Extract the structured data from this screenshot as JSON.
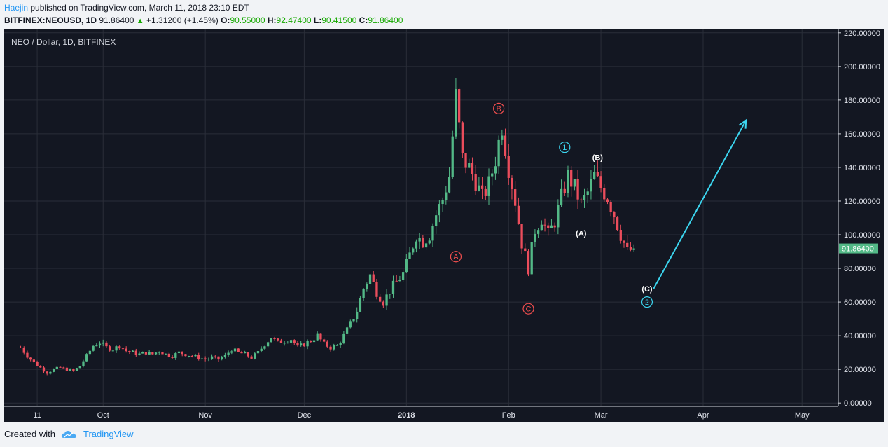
{
  "header": {
    "author": "Haejin",
    "published_text": "published on TradingView.com, March 11, 2018 23:10 EDT",
    "symbol": "BITFINEX:NEOUSD, 1D",
    "last_price": "91.86400",
    "change_arrow": "▲",
    "change": "+1.31200 (+1.45%)",
    "o_label": "O:",
    "o_value": "90.55000",
    "h_label": "H:",
    "h_value": "92.47400",
    "l_label": "L:",
    "l_value": "90.41500",
    "c_label": "C:",
    "c_value": "91.86400"
  },
  "footer": {
    "created_with": "Created with",
    "brand": "TradingView"
  },
  "colors": {
    "background": "#131722",
    "grid": "#2a2e39",
    "up": "#53b987",
    "down": "#eb4d5c",
    "arrow": "#3cd6f0",
    "label_red": "#f04e4e",
    "label_cyan": "#3cd6f0",
    "label_white": "#ffffff",
    "price_tag": "#53b987"
  },
  "chart_data": {
    "type": "candlestick",
    "title": "NEO / Dollar, 1D, BITFINEX",
    "x_tick_labels": [
      "11",
      "Oct",
      "Nov",
      "Dec",
      "2018",
      "Feb",
      "Mar",
      "Apr",
      "May"
    ],
    "x_tick_dates": [
      "2017-09-11",
      "2017-10-01",
      "2017-11-01",
      "2017-12-01",
      "2018-01-01",
      "2018-02-01",
      "2018-03-01",
      "2018-04-01",
      "2018-05-01"
    ],
    "x_range": [
      "2017-09-01",
      "2018-05-12"
    ],
    "y_tick_labels": [
      "0.00000",
      "20.00000",
      "40.00000",
      "60.00000",
      "80.00000",
      "100.00000",
      "120.00000",
      "140.00000",
      "160.00000",
      "180.00000",
      "200.00000",
      "220.00000"
    ],
    "ylim": [
      -2,
      222
    ],
    "last_price_label": "91.86400",
    "last_price": 91.864,
    "closes": [
      [
        "2017-09-06",
        33
      ],
      [
        "2017-09-08",
        28
      ],
      [
        "2017-09-10",
        24
      ],
      [
        "2017-09-12",
        21
      ],
      [
        "2017-09-14",
        18
      ],
      [
        "2017-09-16",
        20
      ],
      [
        "2017-09-18",
        21
      ],
      [
        "2017-09-20",
        20
      ],
      [
        "2017-09-22",
        19
      ],
      [
        "2017-09-24",
        22
      ],
      [
        "2017-09-26",
        28
      ],
      [
        "2017-09-28",
        34
      ],
      [
        "2017-09-30",
        36
      ],
      [
        "2017-10-02",
        33
      ],
      [
        "2017-10-04",
        32
      ],
      [
        "2017-10-06",
        34
      ],
      [
        "2017-10-08",
        31
      ],
      [
        "2017-10-10",
        30
      ],
      [
        "2017-10-12",
        29
      ],
      [
        "2017-10-14",
        30
      ],
      [
        "2017-10-16",
        29
      ],
      [
        "2017-10-18",
        31
      ],
      [
        "2017-10-20",
        29
      ],
      [
        "2017-10-22",
        28
      ],
      [
        "2017-10-24",
        30
      ],
      [
        "2017-10-26",
        29
      ],
      [
        "2017-10-28",
        28
      ],
      [
        "2017-10-30",
        27
      ],
      [
        "2017-11-01",
        26
      ],
      [
        "2017-11-03",
        27
      ],
      [
        "2017-11-05",
        26
      ],
      [
        "2017-11-07",
        28
      ],
      [
        "2017-11-09",
        32
      ],
      [
        "2017-11-11",
        30
      ],
      [
        "2017-11-13",
        29
      ],
      [
        "2017-11-15",
        27
      ],
      [
        "2017-11-17",
        30
      ],
      [
        "2017-11-19",
        35
      ],
      [
        "2017-11-21",
        39
      ],
      [
        "2017-11-23",
        36
      ],
      [
        "2017-11-25",
        37
      ],
      [
        "2017-11-27",
        38
      ],
      [
        "2017-11-29",
        33
      ],
      [
        "2017-12-01",
        35
      ],
      [
        "2017-12-03",
        37
      ],
      [
        "2017-12-05",
        40
      ],
      [
        "2017-12-07",
        35
      ],
      [
        "2017-12-09",
        33
      ],
      [
        "2017-12-11",
        34
      ],
      [
        "2017-12-13",
        40
      ],
      [
        "2017-12-15",
        47
      ],
      [
        "2017-12-17",
        55
      ],
      [
        "2017-12-19",
        68
      ],
      [
        "2017-12-21",
        76
      ],
      [
        "2017-12-23",
        66
      ],
      [
        "2017-12-25",
        60
      ],
      [
        "2017-12-27",
        67
      ],
      [
        "2017-12-29",
        72
      ],
      [
        "2017-12-31",
        77
      ],
      [
        "2018-01-02",
        88
      ],
      [
        "2018-01-04",
        100
      ],
      [
        "2018-01-06",
        96
      ],
      [
        "2018-01-08",
        100
      ],
      [
        "2018-01-10",
        112
      ],
      [
        "2018-01-12",
        121
      ],
      [
        "2018-01-14",
        135
      ],
      [
        "2018-01-16",
        182
      ],
      [
        "2018-01-18",
        145
      ],
      [
        "2018-01-20",
        140
      ],
      [
        "2018-01-22",
        132
      ],
      [
        "2018-01-24",
        122
      ],
      [
        "2018-01-26",
        130
      ],
      [
        "2018-01-28",
        145
      ],
      [
        "2018-01-30",
        165
      ],
      [
        "2018-02-01",
        140
      ],
      [
        "2018-02-03",
        120
      ],
      [
        "2018-02-05",
        95
      ],
      [
        "2018-02-07",
        80
      ],
      [
        "2018-02-09",
        103
      ],
      [
        "2018-02-11",
        110
      ],
      [
        "2018-02-13",
        100
      ],
      [
        "2018-02-15",
        108
      ],
      [
        "2018-02-17",
        122
      ],
      [
        "2018-02-19",
        135
      ],
      [
        "2018-02-21",
        128
      ],
      [
        "2018-02-23",
        118
      ],
      [
        "2018-02-25",
        125
      ],
      [
        "2018-02-27",
        135
      ],
      [
        "2018-03-01",
        128
      ],
      [
        "2018-03-03",
        122
      ],
      [
        "2018-03-05",
        112
      ],
      [
        "2018-03-07",
        100
      ],
      [
        "2018-03-09",
        90
      ],
      [
        "2018-03-11",
        91.864
      ]
    ],
    "annotations": [
      {
        "text": "A",
        "style": "circled",
        "color": "red",
        "date": "2018-01-16",
        "price": 87
      },
      {
        "text": "B",
        "style": "circled",
        "color": "red",
        "date": "2018-01-29",
        "price": 175
      },
      {
        "text": "C",
        "style": "circled",
        "color": "red",
        "date": "2018-02-07",
        "price": 56
      },
      {
        "text": "1",
        "style": "circled",
        "color": "cyan",
        "date": "2018-02-18",
        "price": 152
      },
      {
        "text": "(B)",
        "style": "plain",
        "color": "white",
        "date": "2018-02-28",
        "price": 146
      },
      {
        "text": "(A)",
        "style": "plain",
        "color": "white",
        "date": "2018-02-23",
        "price": 101
      },
      {
        "text": "(C)",
        "style": "plain",
        "color": "white",
        "date": "2018-03-15",
        "price": 68
      },
      {
        "text": "2",
        "style": "circled",
        "color": "cyan",
        "date": "2018-03-15",
        "price": 60
      }
    ],
    "projection_arrow": {
      "from": [
        "2018-03-17",
        68
      ],
      "to": [
        "2018-04-14",
        168
      ]
    }
  }
}
